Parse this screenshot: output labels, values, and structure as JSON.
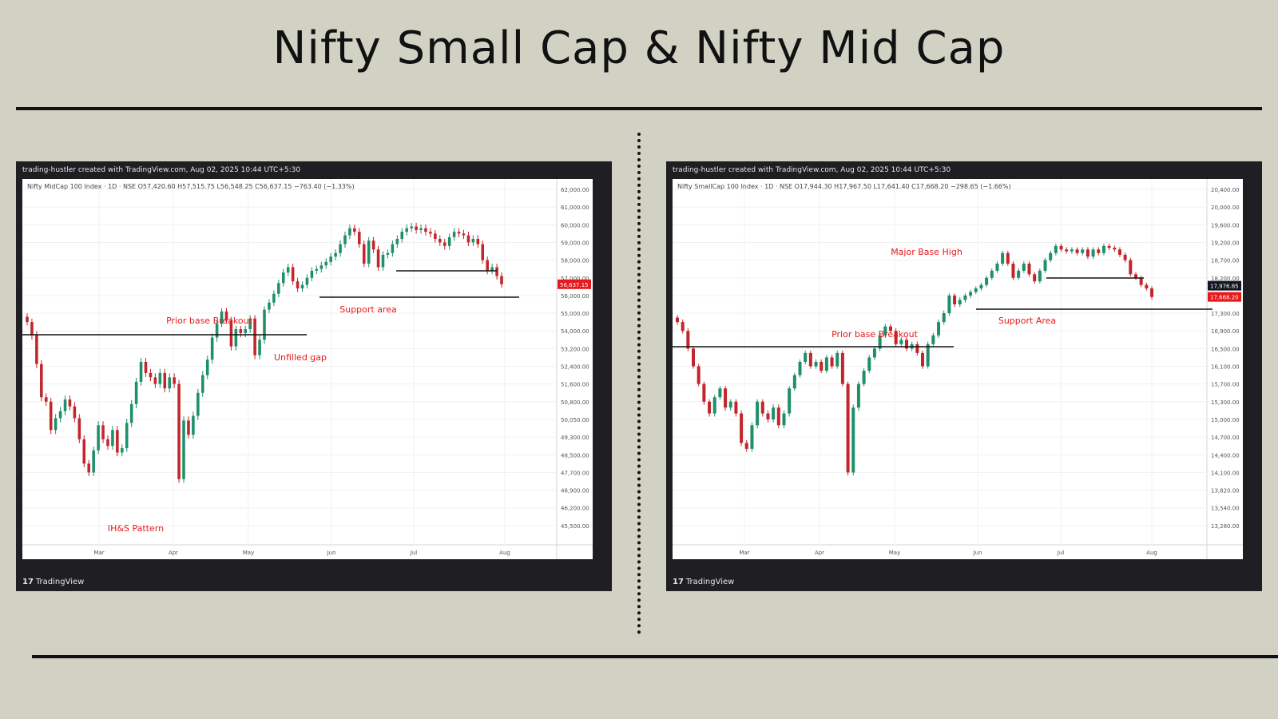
{
  "page": {
    "title": "Nifty Small Cap & Nifty Mid Cap"
  },
  "colors": {
    "background": "#d1d2c4",
    "up": "#1f8f6a",
    "down": "#c2262c",
    "annotation": "#e8191b",
    "price_tag": "#e8191b",
    "line": "#111111",
    "panel": "#1f1f23"
  },
  "chart_data": [
    {
      "type": "candlestick",
      "header": "trading-hustler created with TradingView.com, Aug 02, 2025 10:44 UTC+5:30",
      "symbol_line": "Nifty MidCap 100 Index · 1D · NSE",
      "ohlc_text": {
        "o": "57,420.60",
        "h": "57,515.75",
        "l": "56,548.25",
        "c": "56,637.15",
        "change": "−763.40 (−1.33%)"
      },
      "footer": "TradingView",
      "x_ticks": [
        "Mar",
        "Apr",
        "May",
        "Jun",
        "Jul",
        "Aug"
      ],
      "y_ticks": [
        "62,000.00",
        "61,000.00",
        "60,000.00",
        "59,000.00",
        "58,000.00",
        "57,000.00",
        "56,000.00",
        "55,000.00",
        "54,000.00",
        "53,200.00",
        "52,400.00",
        "51,600.00",
        "50,800.00",
        "50,050.00",
        "49,300.00",
        "48,500.00",
        "47,700.00",
        "46,900.00",
        "46,200.00",
        "45,500.00"
      ],
      "last_price": "56,637.15",
      "annotations": [
        "Prior base Breakout",
        "Unfilled gap",
        "Support area",
        "IH&S Pattern"
      ],
      "closes": [
        54500,
        53800,
        52500,
        51000,
        50800,
        49600,
        50100,
        50400,
        50900,
        50600,
        50100,
        49200,
        48100,
        47700,
        48700,
        49800,
        49200,
        48900,
        49600,
        48600,
        48800,
        49900,
        50700,
        51700,
        52600,
        52100,
        51900,
        51600,
        52100,
        51400,
        51900,
        51600,
        47400,
        50000,
        49400,
        50200,
        51200,
        52000,
        52700,
        53700,
        54400,
        55100,
        54600,
        53300,
        54100,
        53900,
        54100,
        54700,
        52900,
        53600,
        55200,
        55600,
        56100,
        56700,
        57300,
        57600,
        56800,
        56400,
        56600,
        57000,
        57400,
        57500,
        57700,
        57900,
        58200,
        58400,
        58900,
        59400,
        59800,
        59600,
        58900,
        57800,
        59100,
        58600,
        57600,
        58300,
        58400,
        58900,
        59200,
        59600,
        59800,
        59900,
        59700,
        59800,
        59600,
        59500,
        59200,
        59000,
        58800,
        59300,
        59600,
        59500,
        59400,
        59000,
        59200,
        58900,
        58000,
        57400,
        57600,
        57100,
        56637
      ]
    },
    {
      "type": "candlestick",
      "header": "trading-hustler created with TradingView.com, Aug 02, 2025 10:44 UTC+5:30",
      "symbol_line": "Nifty SmallCap 100 Index · 1D · NSE",
      "ohlc_text": {
        "o": "17,944.30",
        "h": "17,967.50",
        "l": "17,641.40",
        "c": "17,668.20",
        "change": "−298.65 (−1.66%)"
      },
      "footer": "TradingView",
      "x_ticks": [
        "Mar",
        "Apr",
        "May",
        "Jun",
        "Jul",
        "Aug"
      ],
      "y_ticks": [
        "20,400.00",
        "20,000.00",
        "19,600.00",
        "19,200.00",
        "18,700.00",
        "18,200.00",
        "17,700.00",
        "17,300.00",
        "16,900.00",
        "16,500.00",
        "16,100.00",
        "15,700.00",
        "15,300.00",
        "15,000.00",
        "14,700.00",
        "14,400.00",
        "14,100.00",
        "13,820.00",
        "13,540.00",
        "13,280.00"
      ],
      "marker_price": "17,976.85",
      "last_price": "17,668.20",
      "annotations": [
        "Major Base High",
        "Prior base Breakout",
        "Support Area"
      ],
      "closes": [
        17100,
        16900,
        16500,
        16100,
        15700,
        15300,
        15100,
        15400,
        15600,
        15200,
        15300,
        15100,
        14600,
        14500,
        14900,
        15300,
        15100,
        15000,
        15200,
        14900,
        15100,
        15600,
        15900,
        16200,
        16400,
        16100,
        16200,
        16000,
        16300,
        16100,
        16400,
        15700,
        14100,
        15200,
        15700,
        16000,
        16300,
        16500,
        16800,
        17000,
        16900,
        16600,
        16700,
        16500,
        16600,
        16400,
        16100,
        16600,
        16800,
        17100,
        17300,
        17700,
        17500,
        17600,
        17700,
        17800,
        17900,
        18000,
        18200,
        18400,
        18600,
        18900,
        18600,
        18200,
        18400,
        18600,
        18300,
        18100,
        18400,
        18700,
        18900,
        19100,
        19000,
        18950,
        19000,
        18900,
        19000,
        18800,
        19000,
        18900,
        19100,
        19050,
        19000,
        18850,
        18700,
        18300,
        18200,
        18000,
        17900,
        17668
      ]
    }
  ]
}
